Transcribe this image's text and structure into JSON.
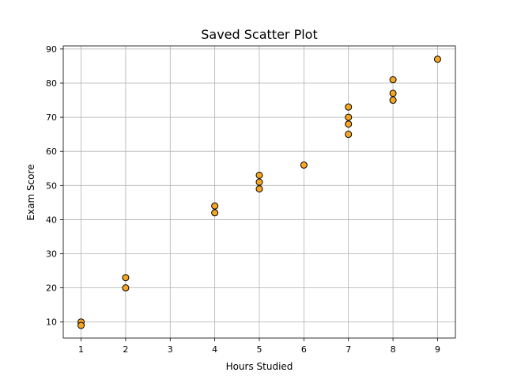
{
  "chart_data": {
    "type": "scatter",
    "title": "Saved Scatter Plot",
    "xlabel": "Hours Studied",
    "ylabel": "Exam Score",
    "xlim": [
      0.6,
      9.4
    ],
    "ylim": [
      5.3,
      90.9
    ],
    "xticks": [
      1,
      2,
      3,
      4,
      5,
      6,
      7,
      8,
      9
    ],
    "yticks": [
      10,
      20,
      30,
      40,
      50,
      60,
      70,
      80,
      90
    ],
    "grid": true,
    "marker_color": "#f5a623",
    "marker_edge_color": "#000000",
    "points": [
      {
        "x": 1,
        "y": 10
      },
      {
        "x": 1,
        "y": 9
      },
      {
        "x": 2,
        "y": 23
      },
      {
        "x": 2,
        "y": 20
      },
      {
        "x": 4,
        "y": 44
      },
      {
        "x": 4,
        "y": 42
      },
      {
        "x": 5,
        "y": 53
      },
      {
        "x": 5,
        "y": 51
      },
      {
        "x": 5,
        "y": 49
      },
      {
        "x": 6,
        "y": 56
      },
      {
        "x": 7,
        "y": 73
      },
      {
        "x": 7,
        "y": 70
      },
      {
        "x": 7,
        "y": 68
      },
      {
        "x": 7,
        "y": 65
      },
      {
        "x": 8,
        "y": 81
      },
      {
        "x": 8,
        "y": 77
      },
      {
        "x": 8,
        "y": 75
      },
      {
        "x": 9,
        "y": 87
      }
    ]
  }
}
